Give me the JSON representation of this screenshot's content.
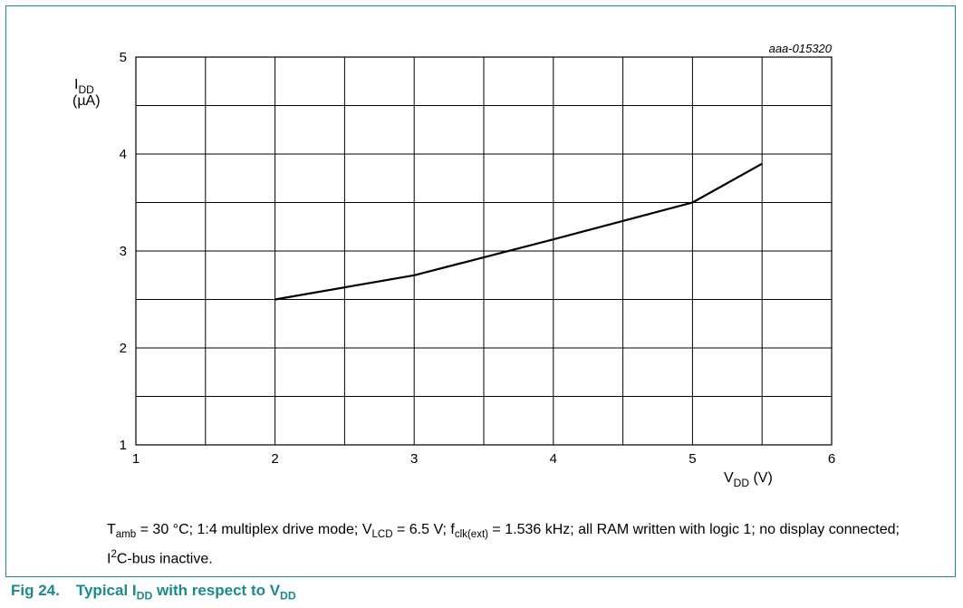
{
  "figure_id": "aaa-015320",
  "colors": {
    "frame": "#1a8a8a",
    "caption": "#1a8a8a",
    "line": "#000000",
    "grid": "#000000"
  },
  "chart_data": {
    "type": "line",
    "title": "",
    "xlabel": {
      "main": "V",
      "sub": "DD",
      "unit": "(V)"
    },
    "ylabel": {
      "main": "I",
      "sub": "DD",
      "unit": "(µA)"
    },
    "xlim": [
      1,
      6
    ],
    "ylim": [
      1,
      5
    ],
    "xticks": [
      1,
      2,
      3,
      4,
      5,
      6
    ],
    "yticks": [
      1,
      2,
      3,
      4,
      5
    ],
    "grid": true,
    "x_minor_step": 0.5,
    "y_minor_step": 0.5,
    "series": [
      {
        "x": [
          2,
          3,
          4,
          5,
          5.5
        ],
        "y": [
          2.5,
          2.75,
          3.12,
          3.5,
          3.9
        ]
      }
    ]
  },
  "note": {
    "t_main": "T",
    "t_sub": "amb",
    "t_rest": " = 30 °C; 1:4 multiplex drive mode; ",
    "v_main": "V",
    "v_sub": "LCD",
    "v_rest": " = 6.5 V; ",
    "f_main": "f",
    "f_sub": "clk(ext)",
    "f_rest": " = 1.536 kHz; all RAM written with logic 1; no display connected; ",
    "i_main": "I",
    "i_sup": "2",
    "i_rest": "C-bus inactive."
  },
  "caption": {
    "number": "Fig 24.",
    "text1": "Typical I",
    "sub1": "DD",
    "text2": " with respect to V",
    "sub2": "DD"
  }
}
